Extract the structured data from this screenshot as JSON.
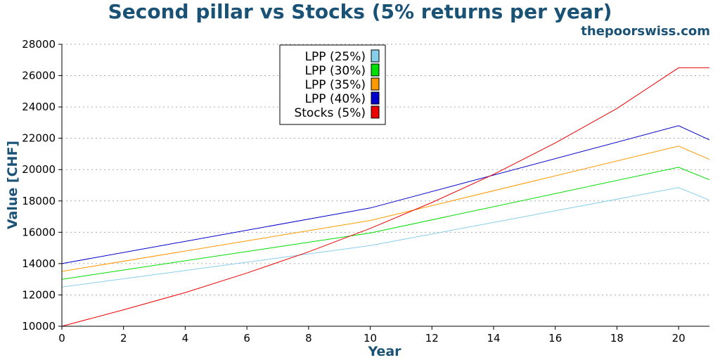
{
  "header": {
    "title": "Second pillar vs Stocks (5% returns per year)",
    "watermark": "thepoorswiss.com"
  },
  "chart_data": {
    "type": "line",
    "title": "Second pillar vs Stocks (5% returns per year)",
    "xlabel": "Year",
    "ylabel": "Value [CHF]",
    "xlim": [
      0,
      21
    ],
    "ylim": [
      10000,
      28000
    ],
    "xticks": [
      0,
      2,
      4,
      6,
      8,
      10,
      12,
      14,
      16,
      18,
      20
    ],
    "yticks": [
      10000,
      12000,
      14000,
      16000,
      18000,
      20000,
      22000,
      24000,
      26000,
      28000
    ],
    "grid": "horizontal dotted",
    "legend_position": "top-center",
    "x": [
      0,
      10,
      20,
      21
    ],
    "series": [
      {
        "name": "LPP (25%)",
        "color": "#87ceeb",
        "x": [
          0,
          10,
          20,
          21
        ],
        "values": [
          12500,
          15150,
          18850,
          18050
        ]
      },
      {
        "name": "LPP (30%)",
        "color": "#00dd00",
        "x": [
          0,
          10,
          20,
          21
        ],
        "values": [
          13000,
          15950,
          20150,
          19350
        ]
      },
      {
        "name": "LPP (35%)",
        "color": "#ff9900",
        "x": [
          0,
          10,
          20,
          21
        ],
        "values": [
          13500,
          16750,
          21500,
          20650
        ]
      },
      {
        "name": "LPP (40%)",
        "color": "#0000cc",
        "x": [
          0,
          10,
          20,
          21
        ],
        "values": [
          14000,
          17550,
          22800,
          21900
        ]
      },
      {
        "name": "Stocks (5%)",
        "color": "#ee0000",
        "x": [
          0,
          2,
          4,
          6,
          8,
          10,
          12,
          14,
          16,
          18,
          20,
          21
        ],
        "values": [
          10000,
          11050,
          12150,
          13400,
          14750,
          16250,
          17900,
          19700,
          21700,
          23900,
          26500,
          26500
        ]
      }
    ]
  }
}
